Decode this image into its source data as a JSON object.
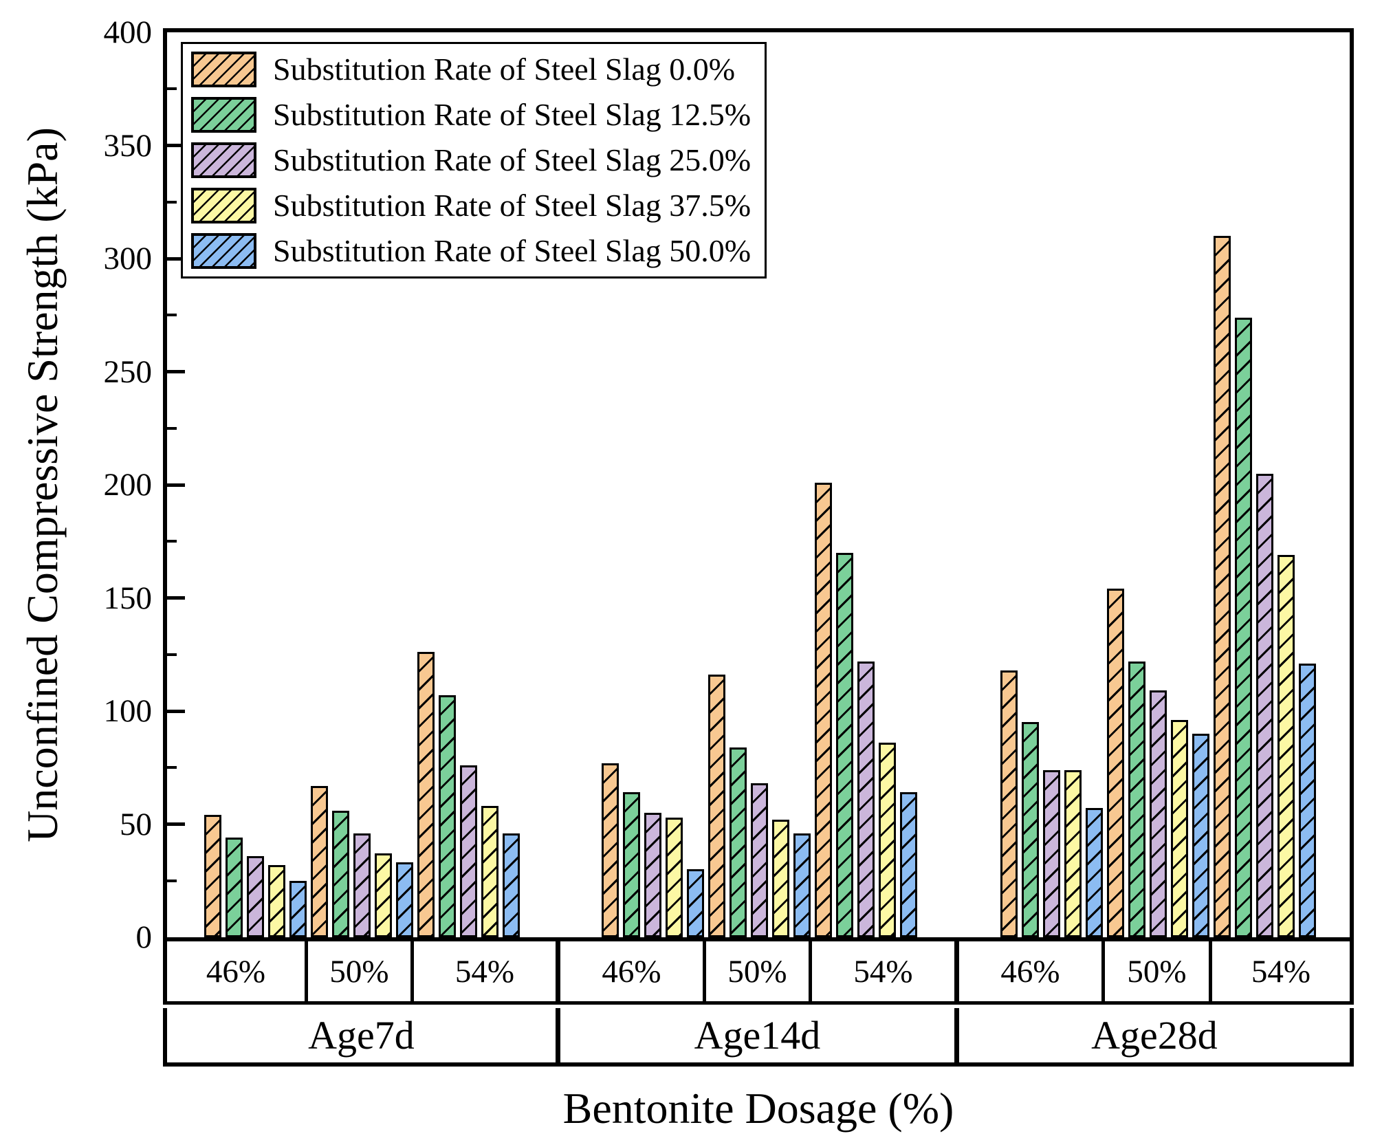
{
  "chart_data": {
    "type": "bar",
    "title": "",
    "ylabel": "Unconfined Compressive Strength (kPa)",
    "xlabel": "Bentonite Dosage (%)",
    "ylim": [
      0,
      400
    ],
    "y_major_ticks": [
      0,
      50,
      100,
      150,
      200,
      250,
      300,
      350,
      400
    ],
    "y_minor_ticks": [
      25,
      75,
      125,
      175,
      225,
      275,
      325,
      375
    ],
    "grid": false,
    "legend_position": "top-left",
    "hatch": "diagonal-forward",
    "bar_outline_color": "#000000",
    "series": [
      {
        "name": "Substitution Rate of Steel Slag 0.0%",
        "color": "#F8C891"
      },
      {
        "name": "Substitution Rate of Steel Slag 12.5%",
        "color": "#7BD09A"
      },
      {
        "name": "Substitution Rate of Steel Slag 25.0%",
        "color": "#CBB6DB"
      },
      {
        "name": "Substitution Rate of Steel Slag 37.5%",
        "color": "#FCF8A4"
      },
      {
        "name": "Substitution Rate of Steel Slag 50.0%",
        "color": "#8CBCF2"
      }
    ],
    "groups": [
      {
        "label": "Age7d",
        "dosages": [
          {
            "label": "46%",
            "values": [
              54,
              44,
              36,
              32,
              25
            ]
          },
          {
            "label": "50%",
            "values": [
              67,
              56,
              46,
              37,
              33
            ]
          },
          {
            "label": "54%",
            "values": [
              126,
              107,
              76,
              58,
              46
            ]
          }
        ]
      },
      {
        "label": "Age14d",
        "dosages": [
          {
            "label": "46%",
            "values": [
              77,
              64,
              55,
              53,
              30
            ]
          },
          {
            "label": "50%",
            "values": [
              116,
              84,
              68,
              52,
              46
            ]
          },
          {
            "label": "54%",
            "values": [
              201,
              170,
              122,
              86,
              64
            ]
          }
        ]
      },
      {
        "label": "Age28d",
        "dosages": [
          {
            "label": "46%",
            "values": [
              118,
              95,
              74,
              74,
              57
            ]
          },
          {
            "label": "50%",
            "values": [
              154,
              122,
              109,
              96,
              90
            ]
          },
          {
            "label": "54%",
            "values": [
              310,
              274,
              205,
              169,
              121
            ]
          }
        ]
      }
    ]
  }
}
